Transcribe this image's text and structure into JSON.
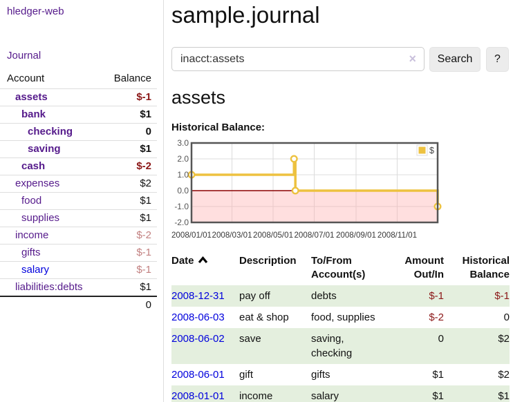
{
  "app": {
    "brand": "hledger-web",
    "nav_journal": "Journal"
  },
  "colors": {
    "link_purple": "#551a8b",
    "link_blue": "#0000dd",
    "negative_strong": "#8b1717",
    "negative_soft": "#c28080",
    "row_shade_green": "#e4efde",
    "series_gold": "#edc240",
    "negative_region_pink": "rgba(255,170,170,0.38)",
    "zero_line_red": "#8b0000",
    "chart_border": "#555555",
    "gridline": "#dcdcdc"
  },
  "sidebar": {
    "header": {
      "account": "Account",
      "balance": "Balance"
    },
    "accounts": [
      {
        "name": "assets",
        "level": 1,
        "bold": true,
        "balance": "$-1",
        "tone": "neg-strong",
        "blue": false
      },
      {
        "name": "bank",
        "level": 2,
        "bold": true,
        "balance": "$1",
        "tone": "",
        "blue": false
      },
      {
        "name": "checking",
        "level": 3,
        "bold": true,
        "balance": "0",
        "tone": "",
        "blue": false
      },
      {
        "name": "saving",
        "level": 3,
        "bold": true,
        "balance": "$1",
        "tone": "",
        "blue": false
      },
      {
        "name": "cash",
        "level": 2,
        "bold": true,
        "balance": "$-2",
        "tone": "neg-strong",
        "blue": false
      },
      {
        "name": "expenses",
        "level": 1,
        "bold": false,
        "balance": "$2",
        "tone": "",
        "blue": false
      },
      {
        "name": "food",
        "level": 2,
        "bold": false,
        "balance": "$1",
        "tone": "",
        "blue": false
      },
      {
        "name": "supplies",
        "level": 2,
        "bold": false,
        "balance": "$1",
        "tone": "",
        "blue": false
      },
      {
        "name": "income",
        "level": 1,
        "bold": false,
        "balance": "$-2",
        "tone": "neg-soft",
        "blue": false
      },
      {
        "name": "gifts",
        "level": 2,
        "bold": false,
        "balance": "$-1",
        "tone": "neg-soft",
        "blue": false
      },
      {
        "name": "salary",
        "level": 2,
        "bold": false,
        "balance": "$-1",
        "tone": "neg-soft",
        "blue": true
      },
      {
        "name": "liabilities:debts",
        "level": 1,
        "bold": false,
        "balance": "$1",
        "tone": "",
        "blue": false
      }
    ],
    "total": "0"
  },
  "main": {
    "title": "sample.journal",
    "search": {
      "value": "inacct:assets",
      "clear_icon": "×",
      "button_label": "Search",
      "help_label": "?"
    },
    "account_heading": "assets"
  },
  "chart_data": {
    "type": "line",
    "title": "Historical Balance:",
    "step": true,
    "series": [
      {
        "name": "$",
        "color": "#edc240",
        "points": [
          [
            "2008-01-01",
            1
          ],
          [
            "2008-06-01",
            2
          ],
          [
            "2008-06-03",
            0
          ],
          [
            "2008-12-31",
            -1
          ]
        ]
      }
    ],
    "xlim": [
      "2008-01-01",
      "2008-12-31"
    ],
    "ylim": [
      -2,
      3
    ],
    "y_ticks": [
      3.0,
      2.0,
      1.0,
      0.0,
      -1.0,
      -2.0
    ],
    "x_ticks": [
      {
        "date": "2008-01-01",
        "label": "2008/01/01"
      },
      {
        "date": "2008-03-01",
        "label": "2008/03/01"
      },
      {
        "date": "2008-05-01",
        "label": "2008/05/01"
      },
      {
        "date": "2008-07-01",
        "label": "2008/07/01"
      },
      {
        "date": "2008-09-01",
        "label": "2008/09/01"
      },
      {
        "date": "2008-11-01",
        "label": "2008/11/01"
      }
    ],
    "legend": {
      "position": "top-right",
      "label": "$"
    },
    "grid": true,
    "zero_line": true,
    "negative_region_shaded": true
  },
  "register": {
    "headers": [
      "Date",
      "Description",
      "To/From Account(s)",
      "Amount Out/In",
      "Historical Balance"
    ],
    "rows": [
      {
        "date": "2008-12-31",
        "description": "pay off",
        "accounts": "debts",
        "amount": "$-1",
        "amount_negative": true,
        "balance": "$-1",
        "balance_negative": true,
        "shaded": true
      },
      {
        "date": "2008-06-03",
        "description": "eat & shop",
        "accounts": "food, supplies",
        "amount": "$-2",
        "amount_negative": true,
        "balance": "0",
        "balance_negative": false,
        "shaded": false
      },
      {
        "date": "2008-06-02",
        "description": "save",
        "accounts": "saving, checking",
        "amount": "0",
        "amount_negative": false,
        "balance": "$2",
        "balance_negative": false,
        "shaded": true
      },
      {
        "date": "2008-06-01",
        "description": "gift",
        "accounts": "gifts",
        "amount": "$1",
        "amount_negative": false,
        "balance": "$2",
        "balance_negative": false,
        "shaded": false
      },
      {
        "date": "2008-01-01",
        "description": "income",
        "accounts": "salary",
        "amount": "$1",
        "amount_negative": false,
        "balance": "$1",
        "balance_negative": false,
        "shaded": true
      }
    ]
  }
}
